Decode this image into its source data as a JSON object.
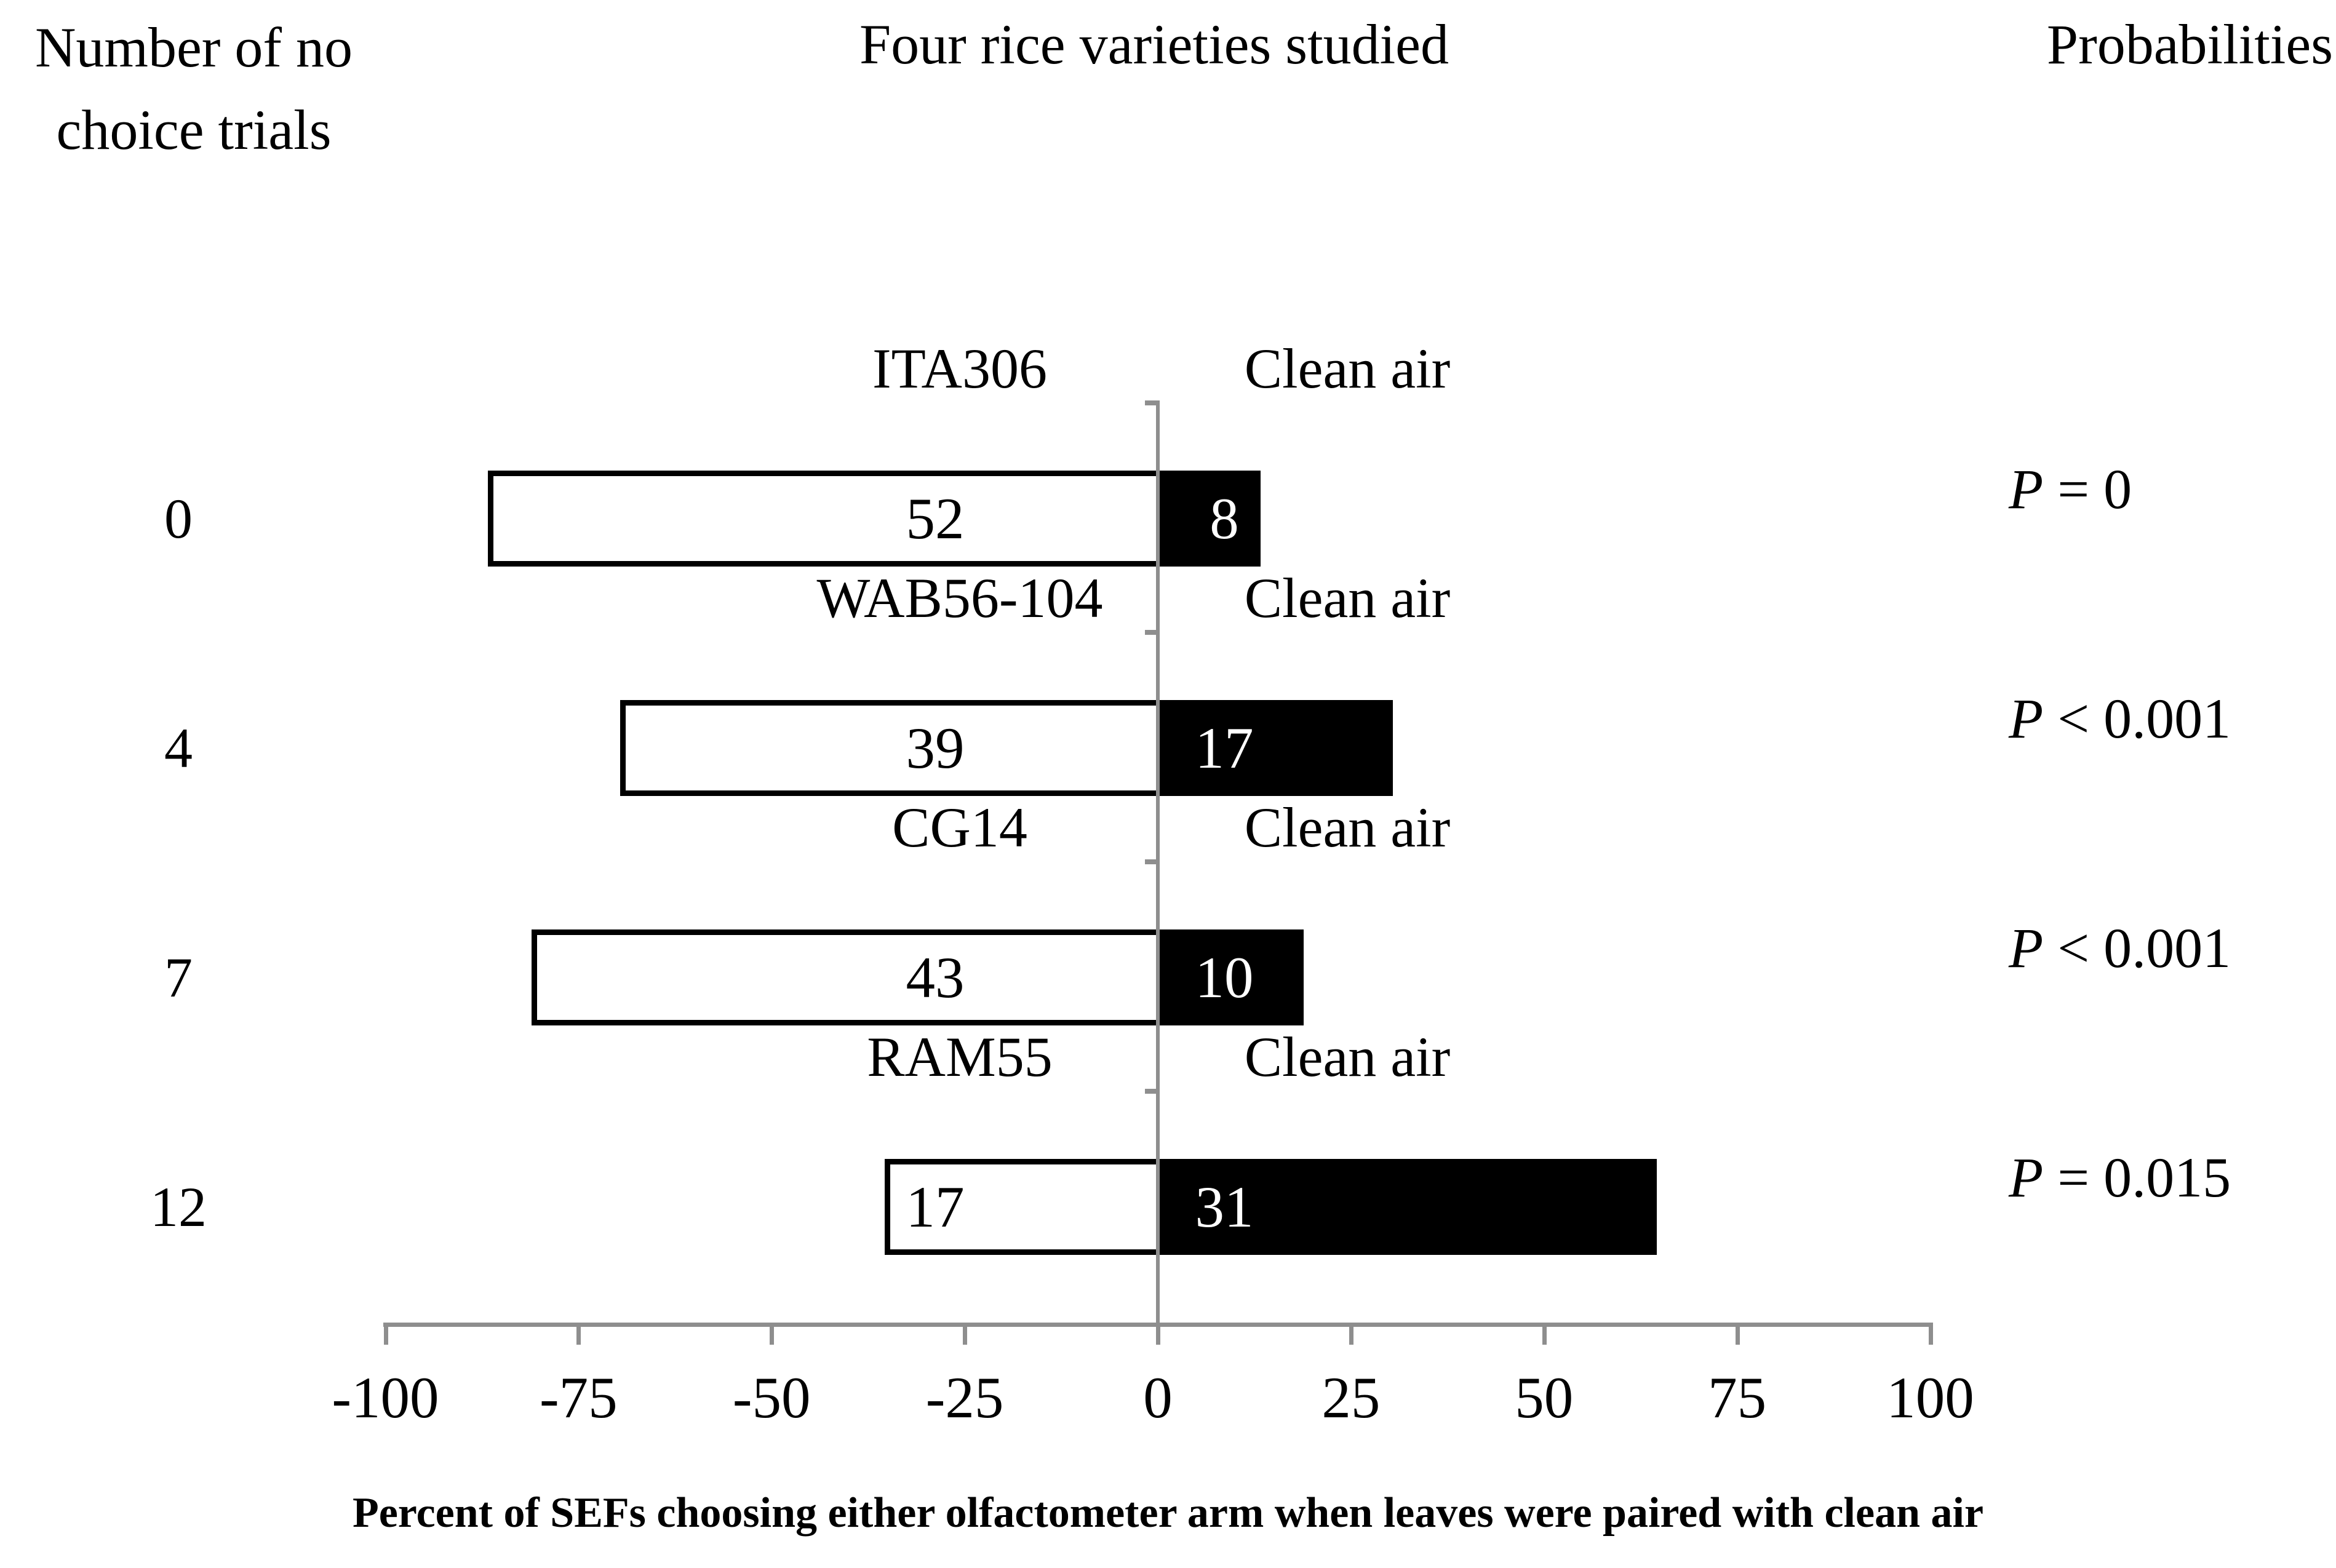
{
  "headers": {
    "left_line1": "Number of no",
    "left_line2": "choice trials",
    "center": "Four rice varieties studied",
    "right": "Probabilities"
  },
  "axis": {
    "tick_labels": [
      "-100",
      "-75",
      "-50",
      "-25",
      "0",
      "25",
      "50",
      "75",
      "100"
    ],
    "label": "Percent of SEFs choosing either olfactometer arm when leaves were paired with clean air"
  },
  "colors": {
    "axis_gray": "#8e8e8e",
    "bar_fill_left": "#ffffff",
    "bar_fill_right": "#000000",
    "bar_border": "#000000",
    "text": "#000000",
    "value_on_black": "#ffffff"
  },
  "chart_data": {
    "type": "bar",
    "subtype": "diverging-horizontal-paired",
    "title": "Four rice varieties studied",
    "left_column_header": "Number of no choice trials",
    "right_column_header": "Probabilities",
    "xlabel": "Percent of SEFs choosing either olfactometer arm when leaves were paired with clean air",
    "xlim": [
      -100,
      100
    ],
    "x_ticks": [
      -100,
      -75,
      -50,
      -25,
      0,
      25,
      50,
      75,
      100
    ],
    "rows": [
      {
        "no_choice_trials": "0",
        "variety": "ITA306",
        "right_label": "Clean air",
        "variety_count": 52,
        "clean_air_count": 8,
        "variety_percent": -86.7,
        "clean_air_percent": 13.3,
        "probability": "P = 0"
      },
      {
        "no_choice_trials": "4",
        "variety": "WAB56-104",
        "right_label": "Clean air",
        "variety_count": 39,
        "clean_air_count": 17,
        "variety_percent": -69.6,
        "clean_air_percent": 30.4,
        "probability": "P < 0.001"
      },
      {
        "no_choice_trials": "7",
        "variety": "CG14",
        "right_label": "Clean air",
        "variety_count": 43,
        "clean_air_count": 10,
        "variety_percent": -81.1,
        "clean_air_percent": 18.9,
        "probability": "P < 0.001"
      },
      {
        "no_choice_trials": "12",
        "variety": "RAM55",
        "right_label": "Clean air",
        "variety_count": 17,
        "clean_air_count": 31,
        "variety_percent": -35.4,
        "clean_air_percent": 64.6,
        "probability": "P = 0.015"
      }
    ]
  }
}
